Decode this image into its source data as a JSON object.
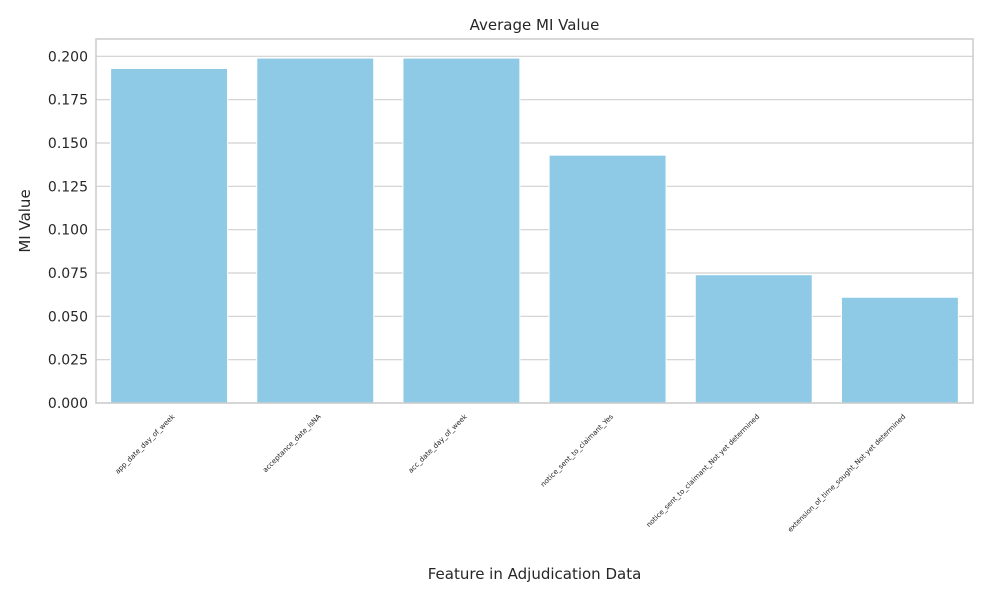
{
  "chart_data": {
    "type": "bar",
    "title": "Average MI Value",
    "xlabel": "Feature in Adjudication Data",
    "ylabel": "MI Value",
    "categories": [
      "app_date_day_of_week",
      "acceptance_date_isNA",
      "acc_date_day_of_week",
      "notice_sent_to_claimant_Yes",
      "notice_sent_to_claimant_Not yet determined",
      "extension_of_time_sought_Not yet determined"
    ],
    "values": [
      0.193,
      0.199,
      0.199,
      0.143,
      0.074,
      0.061
    ],
    "ylim": [
      0,
      0.21
    ],
    "yticks": [
      "0.000",
      "0.025",
      "0.050",
      "0.075",
      "0.100",
      "0.125",
      "0.150",
      "0.175",
      "0.200"
    ],
    "grid": true,
    "bar_color": "#8ecae6"
  }
}
